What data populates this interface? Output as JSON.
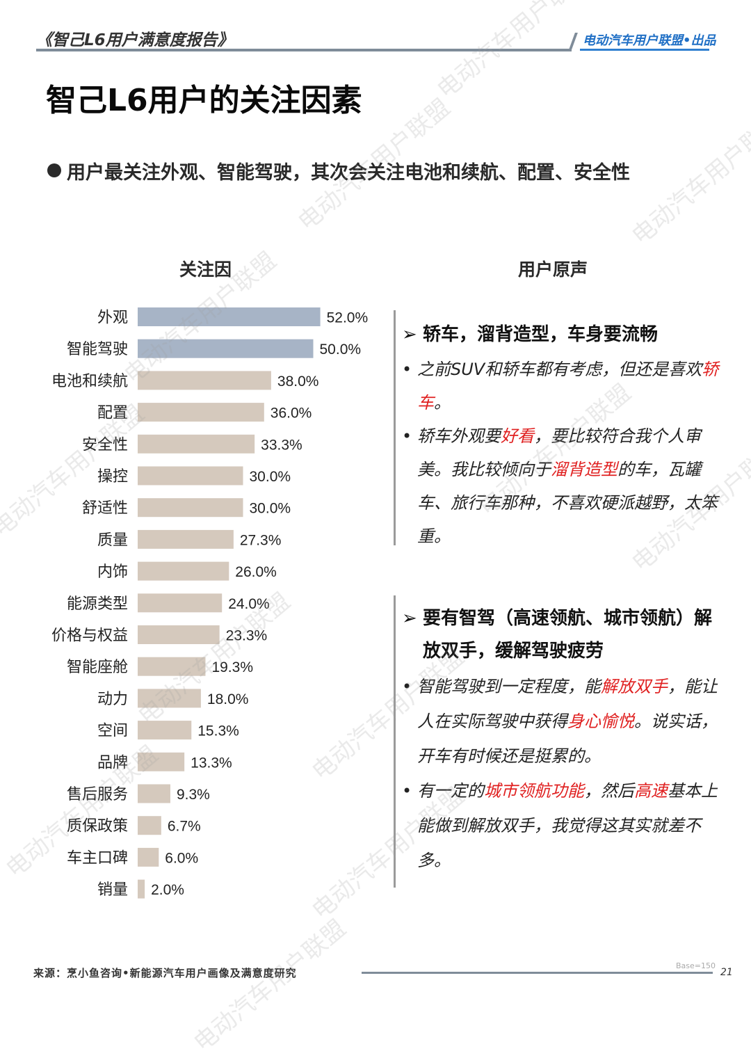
{
  "header": {
    "report_title": "《智己L6用户满意度报告》",
    "publisher": "电动汽车用户联盟•出品"
  },
  "page_title": "智己L6用户的关注因素",
  "subtitle": "用户最关注外观、智能驾驶，其次会关注电池和续航、配置、安全性",
  "left_heading": "关注因",
  "right_heading": "用户原声",
  "colors": {
    "highlight_bar": "#a7b4c6",
    "bar": "#d5c9bd",
    "accent_red": "#e02020"
  },
  "chart_data": {
    "type": "bar",
    "orientation": "horizontal",
    "categories": [
      "外观",
      "智能驾驶",
      "电池和续航",
      "配置",
      "安全性",
      "操控",
      "舒适性",
      "质量",
      "内饰",
      "能源类型",
      "价格与权益",
      "智能座舱",
      "动力",
      "空间",
      "品牌",
      "售后服务",
      "质保政策",
      "车主口碑",
      "销量"
    ],
    "values": [
      52.0,
      50.0,
      38.0,
      36.0,
      33.3,
      30.0,
      30.0,
      27.3,
      26.0,
      24.0,
      23.3,
      19.3,
      18.0,
      15.3,
      13.3,
      9.3,
      6.7,
      6.0,
      2.0
    ],
    "value_labels": [
      "52.0%",
      "50.0%",
      "38.0%",
      "36.0%",
      "33.3%",
      "30.0%",
      "30.0%",
      "27.3%",
      "26.0%",
      "24.0%",
      "23.3%",
      "19.3%",
      "18.0%",
      "15.3%",
      "13.3%",
      "9.3%",
      "6.7%",
      "6.0%",
      "2.0%"
    ],
    "highlighted": [
      "外观",
      "智能驾驶"
    ],
    "unit": "%"
  },
  "quotes": [
    {
      "title": "轿车，溜背造型，车身要流畅",
      "items": [
        [
          {
            "t": "之前SUV和轿车都有考虑，但还是喜欢"
          },
          {
            "t": "轿车",
            "hl": true
          },
          {
            "t": "。"
          }
        ],
        [
          {
            "t": "轿车外观要"
          },
          {
            "t": "好看",
            "hl": true
          },
          {
            "t": "，要比较符合我个人审美。我比较倾向于"
          },
          {
            "t": "溜背造型",
            "hl": true
          },
          {
            "t": "的车，瓦罐车、旅行车那种，不喜欢硬派越野，太笨重。"
          }
        ]
      ]
    },
    {
      "title": "要有智驾（高速领航、城市领航）解放双手，缓解驾驶疲劳",
      "items": [
        [
          {
            "t": "智能驾驶到一定程度，能"
          },
          {
            "t": "解放双手",
            "hl": true
          },
          {
            "t": "，能让人在实际驾驶中获得"
          },
          {
            "t": "身心愉悦",
            "hl": true
          },
          {
            "t": "。说实话，开车有时候还是挺累的。"
          }
        ],
        [
          {
            "t": "有一定的"
          },
          {
            "t": "城市领航功能",
            "hl": true
          },
          {
            "t": "，然后"
          },
          {
            "t": "高速",
            "hl": true
          },
          {
            "t": "基本上能做到解放双手，我觉得这其实就差不多。"
          }
        ]
      ]
    }
  ],
  "footer": {
    "source": "来源：烹小鱼咨询•新能源汽车用户画像及满意度研究",
    "base": "Base=150",
    "page": "21"
  },
  "watermark": "电动汽车用户联盟"
}
